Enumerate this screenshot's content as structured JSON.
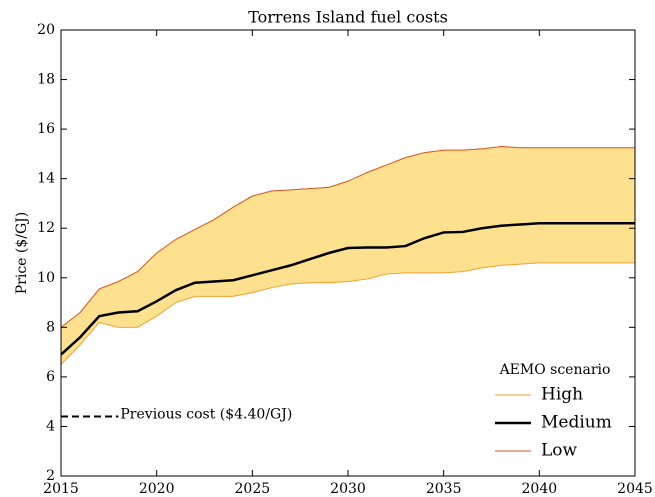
{
  "chart_data": {
    "type": "line",
    "title": "Torrens Island fuel costs",
    "y_label": "Price ($/GJ)",
    "x": [
      2015,
      2016,
      2017,
      2018,
      2019,
      2020,
      2021,
      2022,
      2023,
      2024,
      2025,
      2026,
      2027,
      2028,
      2029,
      2030,
      2031,
      2032,
      2033,
      2034,
      2035,
      2036,
      2037,
      2038,
      2039,
      2040,
      2041,
      2042,
      2043,
      2044,
      2045
    ],
    "series": [
      {
        "name": "High",
        "color": "#f5a030",
        "width": 1,
        "values": [
          6.5,
          7.3,
          8.2,
          8.0,
          8.0,
          8.45,
          9.0,
          9.25,
          9.25,
          9.25,
          9.4,
          9.6,
          9.75,
          9.8,
          9.8,
          9.85,
          9.95,
          10.15,
          10.2,
          10.2,
          10.2,
          10.25,
          10.4,
          10.5,
          10.55,
          10.6,
          10.6,
          10.6,
          10.6,
          10.6,
          10.6
        ]
      },
      {
        "name": "Medium",
        "color": "#000000",
        "width": 2.5,
        "values": [
          6.9,
          7.6,
          8.45,
          8.6,
          8.65,
          9.05,
          9.5,
          9.8,
          9.85,
          9.9,
          10.1,
          10.3,
          10.5,
          10.75,
          11.0,
          11.2,
          11.22,
          11.22,
          11.28,
          11.6,
          11.83,
          11.85,
          12.0,
          12.1,
          12.15,
          12.2,
          12.2,
          12.2,
          12.2,
          12.2,
          12.2
        ]
      },
      {
        "name": "Low",
        "color": "#d95319",
        "width": 1,
        "values": [
          8.0,
          8.6,
          9.55,
          9.85,
          10.25,
          11.0,
          11.55,
          11.95,
          12.35,
          12.85,
          13.3,
          13.5,
          13.55,
          13.6,
          13.65,
          13.9,
          14.25,
          14.55,
          14.85,
          15.05,
          15.15,
          15.15,
          15.2,
          15.3,
          15.25,
          15.25,
          15.25,
          15.25,
          15.25,
          15.25,
          15.25
        ]
      }
    ],
    "band_color": "#fde18f",
    "legend_title": "AEMO scenario",
    "legend": "lower right",
    "previous_cost": {
      "label": "Previous cost ($4.40/GJ)",
      "value": 4.4,
      "x": [
        2015,
        2018
      ]
    },
    "xlim": [
      2015,
      2045
    ],
    "xticks": [
      2015,
      2020,
      2025,
      2030,
      2035,
      2040,
      2045
    ],
    "ylim": [
      2,
      20
    ],
    "yticks": [
      2,
      4,
      6,
      8,
      10,
      12,
      14,
      16,
      18,
      20
    ]
  }
}
